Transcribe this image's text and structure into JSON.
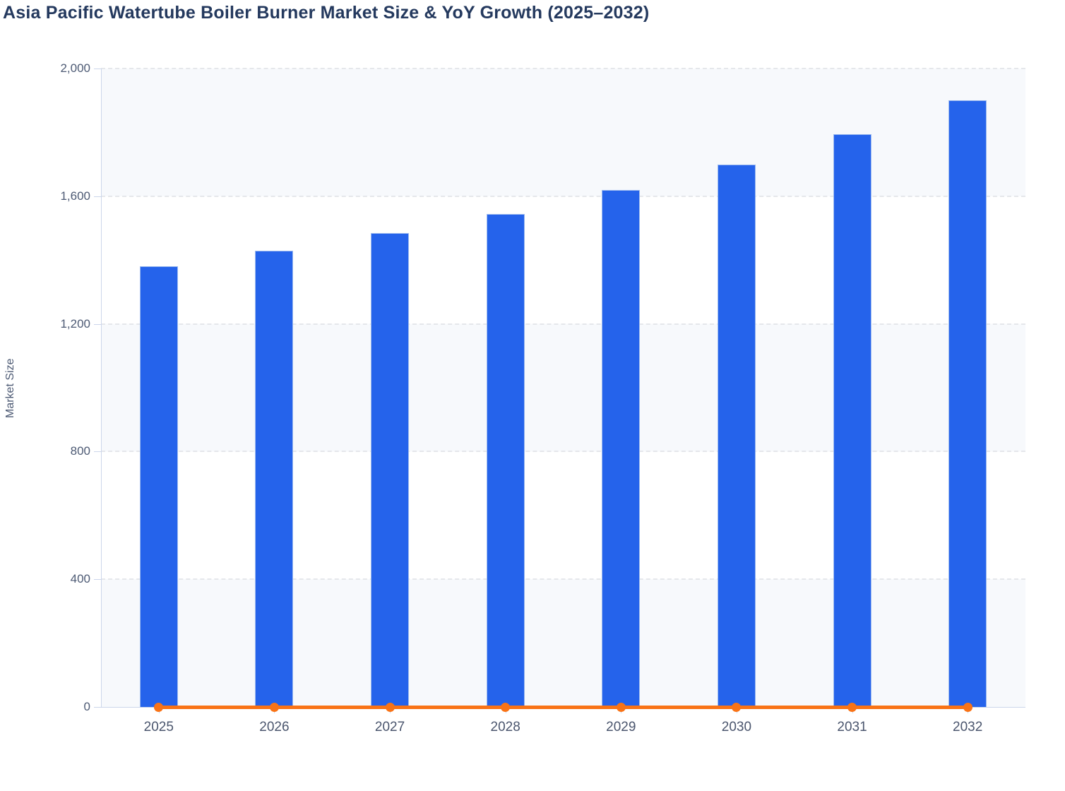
{
  "title": "Asia Pacific Watertube Boiler Burner Market Size & YoY Growth (2025–2032)",
  "chart_data": {
    "type": "bar",
    "title": "Asia Pacific Watertube Boiler Burner Market Size & YoY Growth (2025–2032)",
    "categories": [
      "2025",
      "2026",
      "2027",
      "2028",
      "2029",
      "2030",
      "2031",
      "2032"
    ],
    "series": [
      {
        "name": "Market Size",
        "type": "bar",
        "color": "#2563eb",
        "values": [
          1380,
          1430,
          1485,
          1545,
          1620,
          1700,
          1795,
          1900
        ]
      },
      {
        "name": "YoY Growth",
        "type": "line",
        "color": "#f97316",
        "values": [
          0,
          0,
          0,
          0,
          0,
          0,
          0,
          0
        ],
        "note": "line renders flat on the baseline (values negligible on the left axis scale)"
      }
    ],
    "xlabel": "",
    "ylabel": "Market Size",
    "ylim": [
      0,
      2000
    ],
    "yticks": [
      0,
      400,
      800,
      1200,
      1600,
      2000
    ],
    "ytick_labels": [
      "0",
      "400",
      "800",
      "1,200",
      "1,600",
      "2,000"
    ],
    "grid": "dashed horizontal gridlines",
    "alternate_band_color": "#f7f9fc",
    "axis_line_color": "#ccd6eb",
    "legend": "none"
  }
}
